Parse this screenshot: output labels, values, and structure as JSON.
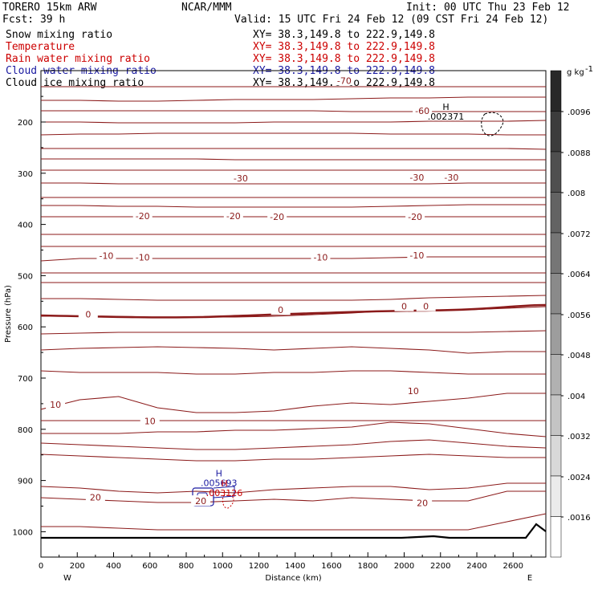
{
  "header": {
    "model": "TORERO  15km ARW",
    "org": "NCAR/MMM",
    "init": "Init: 00 UTC Thu 23 Feb 12",
    "fcst": "Fcst:   39 h",
    "valid": "Valid: 15 UTC Fri 24 Feb 12 (09 CST Fri 24 Feb 12)"
  },
  "fields": [
    {
      "name": "Snow mixing ratio",
      "xy": "XY=  38.3,149.8 to 222.9,149.8",
      "color": "#000000",
      "xycolor": "#000000"
    },
    {
      "name": "Temperature",
      "xy": "XY=  38.3,149.8 to 222.9,149.8",
      "color": "#cc0000",
      "xycolor": "#cc0000"
    },
    {
      "name": "Rain water mixing ratio",
      "xy": "XY=  38.3,149.8 to 222.9,149.8",
      "color": "#cc0000",
      "xycolor": "#cc0000"
    },
    {
      "name": "Cloud water mixing ratio",
      "xy": "XY=  38.3,149.8 to 222.9,149.8",
      "color": "#1a1aa0",
      "xycolor": "#1a1aa0"
    },
    {
      "name": "Cloud ice mixing ratio",
      "xy": "XY=  38.3,149.8 to 222.9,149.8",
      "color": "#000000",
      "xycolor": "#000000"
    }
  ],
  "chart_data": {
    "type": "contour-cross-section",
    "xlabel": "Distance (km)",
    "ylabel": "Pressure (hPa)",
    "xlim": [
      0,
      2780
    ],
    "ylim": [
      1050,
      100
    ],
    "xticks": [
      0,
      200,
      400,
      600,
      800,
      1000,
      1200,
      1400,
      1600,
      1800,
      2000,
      2200,
      2400,
      2600
    ],
    "yticks": [
      200,
      300,
      400,
      500,
      600,
      700,
      800,
      900,
      1000
    ],
    "x_end_labels": {
      "left": "W",
      "right": "E"
    },
    "colorbar": {
      "unit": "g kg",
      "unit_exp": "-1",
      "ticks": [
        ".0096",
        ".0088",
        ".008",
        ".0072",
        ".0064",
        ".0056",
        ".0048",
        ".004",
        ".0032",
        ".0024",
        ".0016"
      ],
      "values": [
        0.0096,
        0.0088,
        0.008,
        0.0072,
        0.0064,
        0.0056,
        0.0048,
        0.004,
        0.0032,
        0.0024,
        0.0016
      ]
    },
    "temperature_labels": [
      {
        "text": "-70",
        "x": 1670,
        "p": 119
      },
      {
        "text": "-60",
        "x": 2100,
        "p": 178
      },
      {
        "text": "-30",
        "x": 1100,
        "p": 310
      },
      {
        "text": "-30",
        "x": 2070,
        "p": 308
      },
      {
        "text": "-30",
        "x": 2260,
        "p": 308
      },
      {
        "text": "-20",
        "x": 560,
        "p": 383
      },
      {
        "text": "-20",
        "x": 1060,
        "p": 383
      },
      {
        "text": "-20",
        "x": 1300,
        "p": 385
      },
      {
        "text": "-20",
        "x": 2060,
        "p": 385
      },
      {
        "text": "-10",
        "x": 360,
        "p": 461
      },
      {
        "text": "-10",
        "x": 560,
        "p": 464
      },
      {
        "text": "-10",
        "x": 1540,
        "p": 464
      },
      {
        "text": "-10",
        "x": 2070,
        "p": 460
      },
      {
        "text": "0",
        "x": 260,
        "p": 575
      },
      {
        "text": "0",
        "x": 1320,
        "p": 567
      },
      {
        "text": "0",
        "x": 2000,
        "p": 560
      },
      {
        "text": "0",
        "x": 2120,
        "p": 560
      },
      {
        "text": "10",
        "x": 80,
        "p": 752
      },
      {
        "text": "10",
        "x": 600,
        "p": 784
      },
      {
        "text": "10",
        "x": 2050,
        "p": 725
      },
      {
        "text": "20",
        "x": 300,
        "p": 933
      },
      {
        "text": "20",
        "x": 880,
        "p": 940
      },
      {
        "text": "20",
        "x": 2100,
        "p": 944
      }
    ],
    "extrema": [
      {
        "label": "H",
        "value": ".002371",
        "x": 2230,
        "p": 180,
        "series": "Cloud ice mixing ratio"
      },
      {
        "label": "H",
        "value": ".005693",
        "x": 980,
        "p": 895,
        "series": "Cloud water mixing ratio"
      },
      {
        "label": "H",
        "value": ".003126",
        "x": 1010,
        "p": 915,
        "series": "Rain water mixing ratio"
      }
    ]
  }
}
